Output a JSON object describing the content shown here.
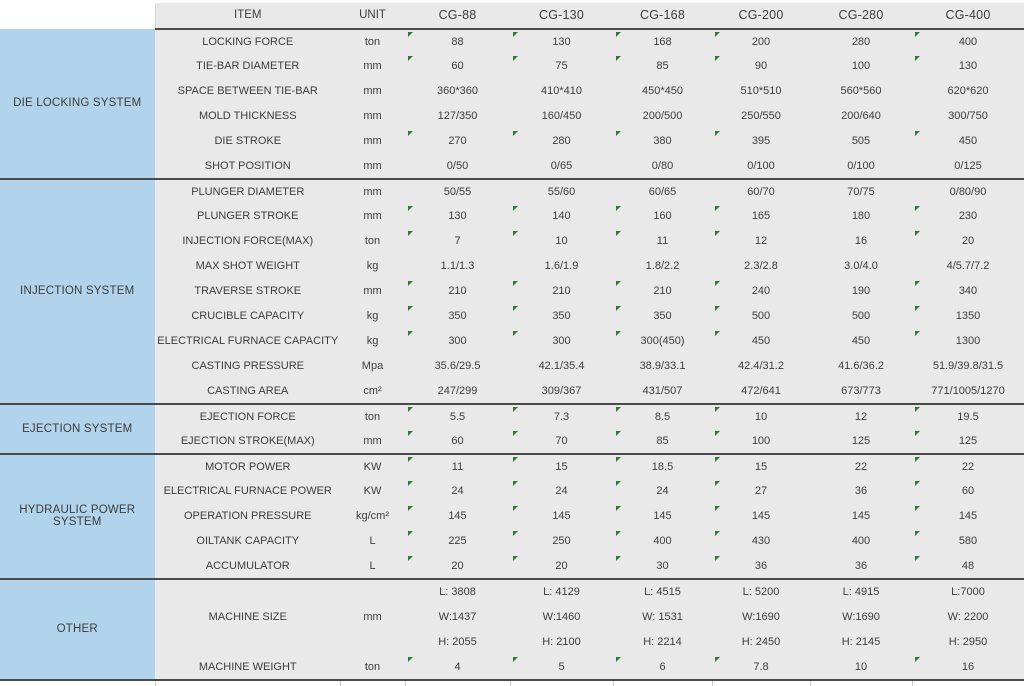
{
  "header": {
    "item": "ITEM",
    "unit": "UNIT",
    "models": [
      "CG-88",
      "CG-130",
      "CG-168",
      "CG-200",
      "CG-280",
      "CG-400"
    ]
  },
  "marker_icon": "comment-marker-icon",
  "marker_columns": [
    0,
    1,
    2,
    3,
    5
  ],
  "sections": [
    {
      "name": "DIE LOCKING SYSTEM",
      "rows": [
        {
          "item": "LOCKING FORCE",
          "unit": "ton",
          "values": [
            "88",
            "130",
            "168",
            "200",
            "280",
            "400"
          ],
          "marker": true
        },
        {
          "item": "TIE-BAR DIAMETER",
          "unit": "mm",
          "values": [
            "60",
            "75",
            "85",
            "90",
            "100",
            "130"
          ],
          "marker": true
        },
        {
          "item": "SPACE BETWEEN TIE-BAR",
          "unit": "mm",
          "values": [
            "360*360",
            "410*410",
            "450*450",
            "510*510",
            "560*560",
            "620*620"
          ],
          "marker": false
        },
        {
          "item": "MOLD THICKNESS",
          "unit": "mm",
          "values": [
            "127/350",
            "160/450",
            "200/500",
            "250/550",
            "200/640",
            "300/750"
          ],
          "marker": false
        },
        {
          "item": "DIE STROKE",
          "unit": "mm",
          "values": [
            "270",
            "280",
            "380",
            "395",
            "505",
            "450"
          ],
          "marker": true
        },
        {
          "item": "SHOT POSITION",
          "unit": "mm",
          "values": [
            "0/50",
            "0/65",
            "0/80",
            "0/100",
            "0/100",
            "0/125"
          ],
          "marker": false
        }
      ]
    },
    {
      "name": "INJECTION SYSTEM",
      "rows": [
        {
          "item": "PLUNGER DIAMETER",
          "unit": "mm",
          "values": [
            "50/55",
            "55/60",
            "60/65",
            "60/70",
            "70/75",
            "0/80/90"
          ],
          "marker": false
        },
        {
          "item": "PLUNGER STROKE",
          "unit": "mm",
          "values": [
            "130",
            "140",
            "160",
            "165",
            "180",
            "230"
          ],
          "marker": true
        },
        {
          "item": "INJECTION FORCE(MAX)",
          "unit": "ton",
          "values": [
            "7",
            "10",
            "11",
            "12",
            "16",
            "20"
          ],
          "marker": true
        },
        {
          "item": "MAX SHOT WEIGHT",
          "unit": "kg",
          "values": [
            "1.1/1.3",
            "1.6/1.9",
            "1.8/2.2",
            "2.3/2.8",
            "3.0/4.0",
            "4/5.7/7.2"
          ],
          "marker": false
        },
        {
          "item": "TRAVERSE STROKE",
          "unit": "mm",
          "values": [
            "210",
            "210",
            "210",
            "240",
            "190",
            "340"
          ],
          "marker": true
        },
        {
          "item": "CRUCIBLE CAPACITY",
          "unit": "kg",
          "values": [
            "350",
            "350",
            "350",
            "500",
            "500",
            "1350"
          ],
          "marker": true
        },
        {
          "item": "ELECTRICAL FURNACE CAPACITY",
          "unit": "kg",
          "values": [
            "300",
            "300",
            "300(450)",
            "450",
            "450",
            "1300"
          ],
          "marker": true
        },
        {
          "item": "CASTING PRESSURE",
          "unit": "Mpa",
          "values": [
            "35.6/29.5",
            "42.1/35.4",
            "38.9/33.1",
            "42.4/31.2",
            "41.6/36.2",
            "51.9/39.8/31.5"
          ],
          "marker": false
        },
        {
          "item": "CASTING AREA",
          "unit": "cm²",
          "values": [
            "247/299",
            "309/367",
            "431/507",
            "472/641",
            "673/773",
            "771/1005/1270"
          ],
          "marker": false
        }
      ]
    },
    {
      "name": "EJECTION SYSTEM",
      "rows": [
        {
          "item": "EJECTION FORCE",
          "unit": "ton",
          "values": [
            "5.5",
            "7.3",
            "8.5",
            "10",
            "12",
            "19.5"
          ],
          "marker": true
        },
        {
          "item": "EJECTION STROKE(MAX)",
          "unit": "mm",
          "values": [
            "60",
            "70",
            "85",
            "100",
            "125",
            "125"
          ],
          "marker": true
        }
      ]
    },
    {
      "name": "HYDRAULIC POWER SYSTEM",
      "rows": [
        {
          "item": "MOTOR POWER",
          "unit": "KW",
          "values": [
            "11",
            "15",
            "18.5",
            "15",
            "22",
            "22"
          ],
          "marker": true
        },
        {
          "item": "ELECTRICAL FURNACE POWER",
          "unit": "KW",
          "values": [
            "24",
            "24",
            "24",
            "27",
            "36",
            "60"
          ],
          "marker": true
        },
        {
          "item": "OPERATION PRESSURE",
          "unit": "kg/cm²",
          "values": [
            "145",
            "145",
            "145",
            "145",
            "145",
            "145"
          ],
          "marker": true
        },
        {
          "item": "OILTANK CAPACITY",
          "unit": "L",
          "values": [
            "225",
            "250",
            "400",
            "430",
            "400",
            "580"
          ],
          "marker": true
        },
        {
          "item": "ACCUMULATOR",
          "unit": "L",
          "values": [
            "20",
            "20",
            "30",
            "36",
            "36",
            "48"
          ],
          "marker": true
        }
      ]
    },
    {
      "name": "OTHER",
      "rows": [
        {
          "item": "MACHINE SIZE",
          "unit": "mm",
          "tall": true,
          "marker": false,
          "values": [
            [
              "L: 3808",
              "W:1437",
              "H: 2055"
            ],
            [
              "L: 4129",
              "W:1460",
              "H: 2100"
            ],
            [
              "L: 4515",
              "W: 1531",
              "H: 2214"
            ],
            [
              "L: 5200",
              "W:1690",
              "H: 2450"
            ],
            [
              "L: 4915",
              "W:1690",
              "H: 2145"
            ],
            [
              "L:7000",
              "W: 2200",
              "H: 2950"
            ]
          ]
        },
        {
          "item": "MACHINE WEIGHT",
          "unit": "ton",
          "values": [
            "4",
            "5",
            "6",
            "7.8",
            "10",
            "16"
          ],
          "marker": true
        }
      ]
    }
  ],
  "colors": {
    "section_blue": "#b1d3eb",
    "cell_gray": "#e9e9e9",
    "separator_dark": "#4a4a4a",
    "marker_green": "#2e7d33",
    "text": "#3d3d3d"
  }
}
